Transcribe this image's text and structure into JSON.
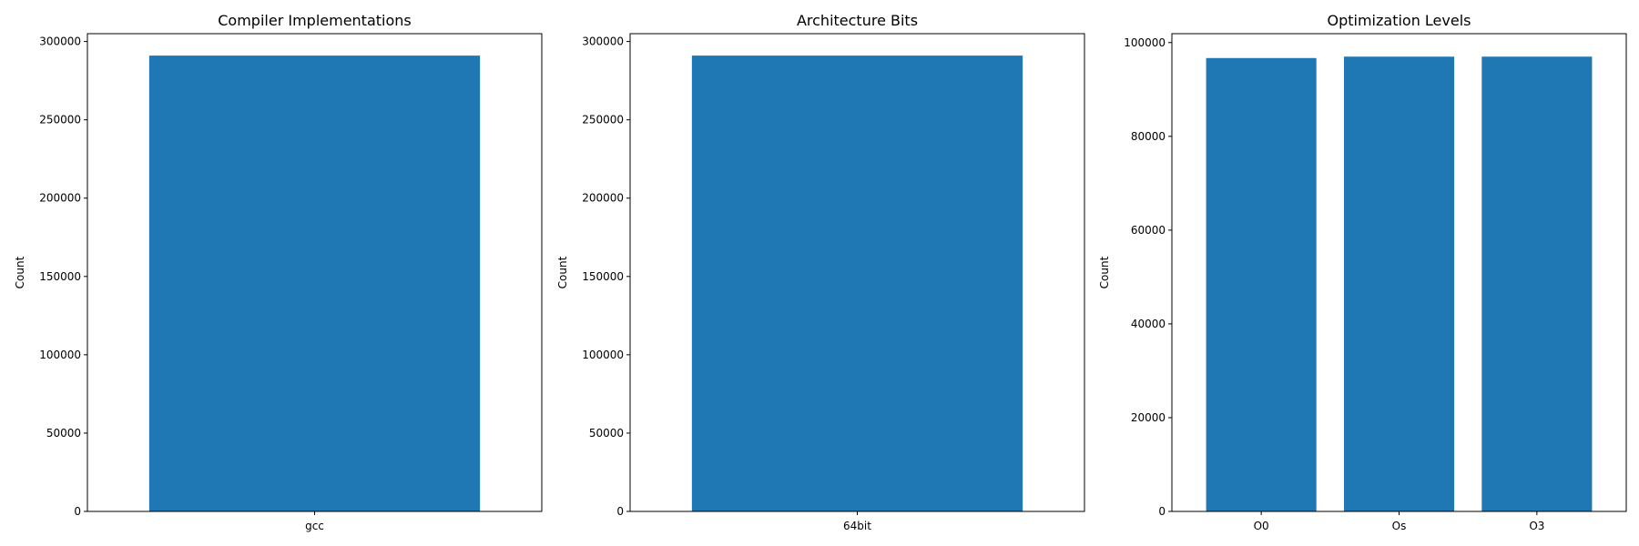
{
  "chart_data": [
    {
      "type": "bar",
      "title": "Compiler Implementations",
      "xlabel": "",
      "ylabel": "Count",
      "categories": [
        "gcc"
      ],
      "values": [
        291000
      ],
      "ylim": [
        0,
        305000
      ],
      "yticks": [
        0,
        50000,
        100000,
        150000,
        200000,
        250000,
        300000
      ],
      "grid": false,
      "bar_color": "#1f77b4"
    },
    {
      "type": "bar",
      "title": "Architecture Bits",
      "xlabel": "",
      "ylabel": "Count",
      "categories": [
        "64bit"
      ],
      "values": [
        291000
      ],
      "ylim": [
        0,
        305000
      ],
      "yticks": [
        0,
        50000,
        100000,
        150000,
        200000,
        250000,
        300000
      ],
      "grid": false,
      "bar_color": "#1f77b4"
    },
    {
      "type": "bar",
      "title": "Optimization Levels",
      "xlabel": "",
      "ylabel": "Count",
      "categories": [
        "O0",
        "Os",
        "O3"
      ],
      "values": [
        96700,
        97000,
        97000
      ],
      "ylim": [
        0,
        101900
      ],
      "yticks": [
        0,
        20000,
        40000,
        60000,
        80000,
        100000
      ],
      "grid": false,
      "bar_color": "#1f77b4"
    }
  ]
}
